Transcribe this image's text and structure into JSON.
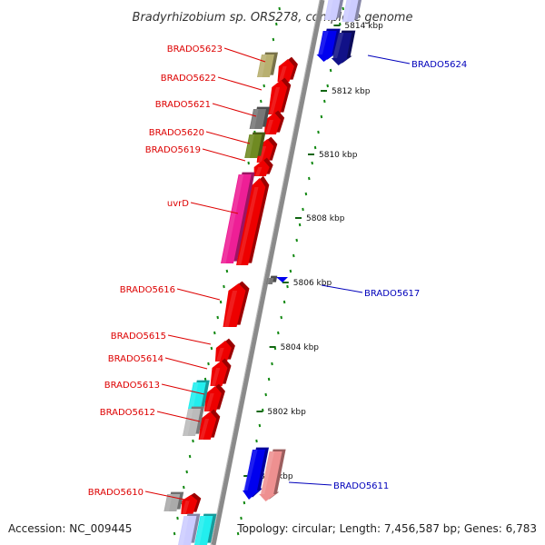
{
  "title": "Bradyrhizobium sp. ORS278, complete genome",
  "footer": {
    "accession": "Accession: NC_009445",
    "topology": "Topology: circular; Length: 7,456,587 bp; Genes: 6,783"
  },
  "scale_labels": [
    "5814 kbp",
    "5812 kbp",
    "5810 kbp",
    "5808 kbp",
    "5806 kbp",
    "5804 kbp",
    "5802 kbp",
    "5800 kbp"
  ],
  "gene_labels_left": [
    "BRADO5623",
    "BRADO5622",
    "BRADO5621",
    "BRADO5620",
    "BRADO5619",
    "uvrD",
    "BRADO5616",
    "BRADO5615",
    "BRADO5614",
    "BRADO5613",
    "BRADO5612",
    "BRADO5610"
  ],
  "gene_labels_right": [
    "BRADO5624",
    "BRADO5617",
    "BRADO5611"
  ],
  "colors": {
    "label_forward": "#dd0000",
    "label_reverse": "#0000bb",
    "backbone": "#8a8a8a",
    "tick": "#118811"
  }
}
